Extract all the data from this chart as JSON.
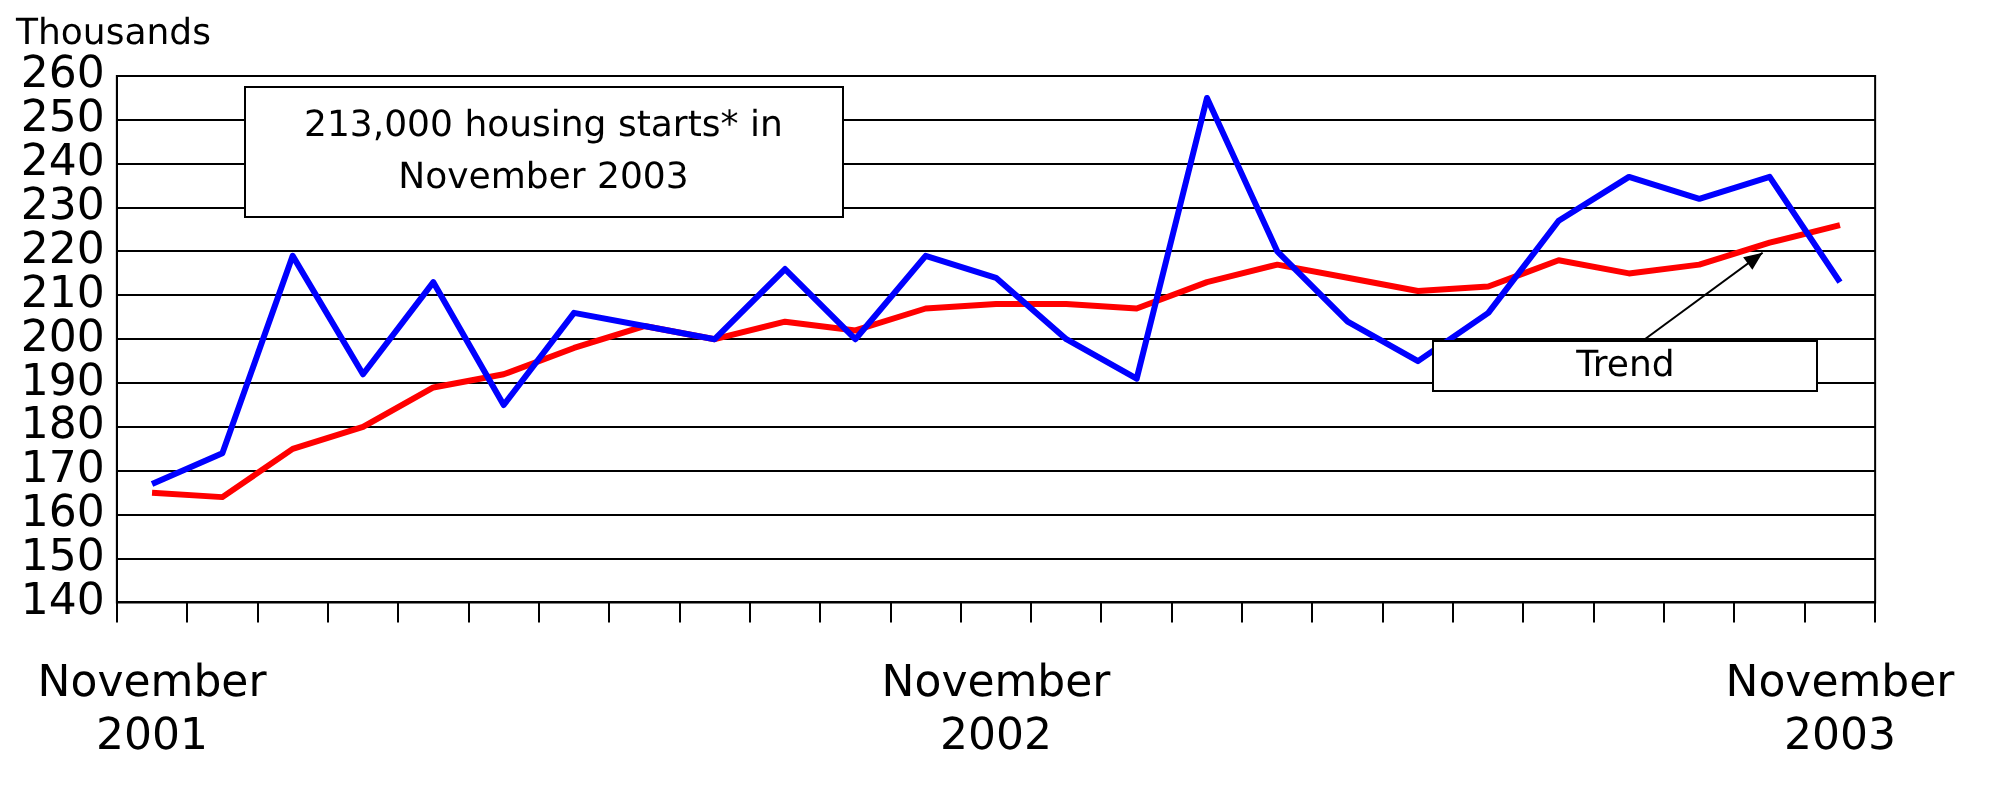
{
  "chart_data": {
    "type": "line",
    "ylabel": "Thousands",
    "annotations": [
      "213,000 housing starts* in November 2003"
    ],
    "categories": [
      "November 2001",
      null,
      null,
      null,
      null,
      null,
      null,
      null,
      null,
      null,
      null,
      null,
      "November 2002",
      null,
      null,
      null,
      null,
      null,
      null,
      null,
      null,
      null,
      null,
      null,
      "November 2003"
    ],
    "series": [
      {
        "color": "#0000ff",
        "values": [
          167,
          174,
          219,
          192,
          213,
          185,
          206,
          203,
          200,
          216,
          200,
          219,
          214,
          200,
          191,
          255,
          220,
          204,
          195,
          206,
          227,
          237,
          232,
          237,
          213
        ]
      },
      {
        "name": "Trend",
        "color": "#ff0000",
        "values": [
          165,
          164,
          175,
          180,
          189,
          192,
          198,
          203,
          200,
          204,
          202,
          207,
          208,
          208,
          207,
          213,
          217,
          214,
          211,
          212,
          218,
          215,
          217,
          222,
          226
        ]
      }
    ],
    "ylim": [
      140,
      260
    ],
    "yticks": [
      140,
      150,
      160,
      170,
      180,
      190,
      200,
      210,
      220,
      230,
      240,
      250,
      260
    ],
    "grid": "y",
    "legend": false,
    "marker": "none",
    "line_style": "solid"
  }
}
